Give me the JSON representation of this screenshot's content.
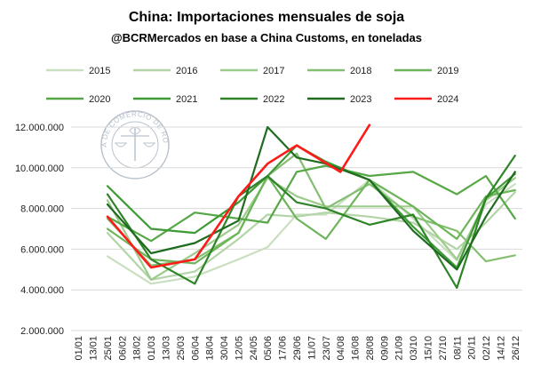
{
  "chart_data": {
    "type": "line",
    "title": "China: Importaciones mensuales de soja",
    "subtitle": "@BCRMercados en base a China Customs, en toneladas",
    "xlabel": "",
    "ylabel": "",
    "ylim": [
      2000000,
      12000000
    ],
    "yticks": [
      2000000,
      4000000,
      6000000,
      8000000,
      10000000,
      12000000
    ],
    "ytick_labels": [
      "2.000.000",
      "4.000.000",
      "6.000.000",
      "8.000.000",
      "10.000.000",
      "12.000.000"
    ],
    "categories": [
      "01/01",
      "13/01",
      "25/01",
      "06/02",
      "18/02",
      "01/03",
      "13/03",
      "25/03",
      "06/04",
      "18/04",
      "30/04",
      "12/05",
      "24/05",
      "05/06",
      "17/06",
      "29/06",
      "11/07",
      "23/07",
      "04/08",
      "16/08",
      "28/08",
      "09/09",
      "21/09",
      "03/10",
      "15/10",
      "27/10",
      "08/11",
      "20/11",
      "02/12",
      "14/12",
      "26/12"
    ],
    "grid": true,
    "legend_position": "top",
    "watermark": "BOLSA DE COMERCIO DE ROSARIO",
    "series": [
      {
        "name": "2015",
        "color": "#c9dfc0",
        "points": [
          [
            2,
            5650000
          ],
          [
            5,
            4300000
          ],
          [
            8,
            4650000
          ],
          [
            11,
            5500000
          ],
          [
            13,
            6100000
          ],
          [
            15,
            7700000
          ],
          [
            17,
            7700000
          ],
          [
            20,
            9400000
          ],
          [
            23,
            7500000
          ],
          [
            26,
            5450000
          ],
          [
            28,
            8200000
          ],
          [
            30,
            9200000
          ]
        ]
      },
      {
        "name": "2016",
        "color": "#b3d4a6",
        "points": [
          [
            2,
            6800000
          ],
          [
            5,
            4500000
          ],
          [
            8,
            4900000
          ],
          [
            11,
            6500000
          ],
          [
            13,
            7700000
          ],
          [
            15,
            7600000
          ],
          [
            17,
            7800000
          ],
          [
            20,
            7600000
          ],
          [
            23,
            7300000
          ],
          [
            26,
            6000000
          ],
          [
            28,
            7300000
          ],
          [
            30,
            8800000
          ]
        ]
      },
      {
        "name": "2017",
        "color": "#9ccb8c",
        "points": [
          [
            2,
            8400000
          ],
          [
            5,
            4500000
          ],
          [
            8,
            5800000
          ],
          [
            11,
            7200000
          ],
          [
            13,
            9500000
          ],
          [
            15,
            8600000
          ],
          [
            17,
            8100000
          ],
          [
            20,
            8100000
          ],
          [
            23,
            8100000
          ],
          [
            26,
            5500000
          ],
          [
            28,
            8400000
          ],
          [
            30,
            9500000
          ]
        ]
      },
      {
        "name": "2018",
        "color": "#84bf71",
        "points": [
          [
            2,
            7500000
          ],
          [
            5,
            5200000
          ],
          [
            8,
            5500000
          ],
          [
            11,
            6800000
          ],
          [
            13,
            9600000
          ],
          [
            15,
            10700000
          ],
          [
            17,
            8000000
          ],
          [
            20,
            9200000
          ],
          [
            23,
            7600000
          ],
          [
            26,
            6900000
          ],
          [
            28,
            5400000
          ],
          [
            30,
            5700000
          ]
        ]
      },
      {
        "name": "2019",
        "color": "#6db55a",
        "points": [
          [
            2,
            7000000
          ],
          [
            5,
            5500000
          ],
          [
            8,
            5300000
          ],
          [
            11,
            6800000
          ],
          [
            13,
            9600000
          ],
          [
            15,
            7500000
          ],
          [
            17,
            6500000
          ],
          [
            20,
            9400000
          ],
          [
            23,
            8100000
          ],
          [
            26,
            6500000
          ],
          [
            28,
            8600000
          ],
          [
            30,
            8900000
          ]
        ]
      },
      {
        "name": "2020",
        "color": "#55a845",
        "points": [
          [
            2,
            7600000
          ],
          [
            5,
            6400000
          ],
          [
            8,
            7800000
          ],
          [
            11,
            7500000
          ],
          [
            13,
            7300000
          ],
          [
            15,
            9800000
          ],
          [
            17,
            10100000
          ],
          [
            20,
            9600000
          ],
          [
            23,
            9800000
          ],
          [
            26,
            8700000
          ],
          [
            28,
            9600000
          ],
          [
            30,
            7500000
          ]
        ]
      },
      {
        "name": "2021",
        "color": "#3e9a34",
        "points": [
          [
            2,
            9100000
          ],
          [
            5,
            7000000
          ],
          [
            8,
            6800000
          ],
          [
            11,
            8300000
          ],
          [
            13,
            9600000
          ],
          [
            15,
            11100000
          ],
          [
            17,
            10300000
          ],
          [
            20,
            9400000
          ],
          [
            23,
            7100000
          ],
          [
            26,
            5100000
          ],
          [
            28,
            8500000
          ],
          [
            30,
            9700000
          ]
        ]
      },
      {
        "name": "2022",
        "color": "#2e8427",
        "points": [
          [
            2,
            8700000
          ],
          [
            5,
            5500000
          ],
          [
            8,
            4300000
          ],
          [
            11,
            8600000
          ],
          [
            13,
            9600000
          ],
          [
            15,
            8300000
          ],
          [
            17,
            8000000
          ],
          [
            20,
            7200000
          ],
          [
            23,
            7700000
          ],
          [
            26,
            4100000
          ],
          [
            28,
            8500000
          ],
          [
            30,
            10600000
          ]
        ]
      },
      {
        "name": "2023",
        "color": "#1f6b1f",
        "points": [
          [
            2,
            8200000
          ],
          [
            5,
            5800000
          ],
          [
            8,
            6300000
          ],
          [
            11,
            7400000
          ],
          [
            13,
            12000000
          ],
          [
            15,
            10500000
          ],
          [
            17,
            10200000
          ],
          [
            20,
            9400000
          ],
          [
            23,
            6900000
          ],
          [
            26,
            5000000
          ],
          [
            28,
            7600000
          ],
          [
            30,
            9800000
          ]
        ]
      },
      {
        "name": "2024",
        "color": "#ff1a1a",
        "points": [
          [
            2,
            7600000
          ],
          [
            5,
            5100000
          ],
          [
            8,
            5500000
          ],
          [
            11,
            8600000
          ],
          [
            13,
            10200000
          ],
          [
            15,
            11100000
          ],
          [
            18,
            9800000
          ],
          [
            20,
            12100000
          ]
        ]
      }
    ]
  }
}
